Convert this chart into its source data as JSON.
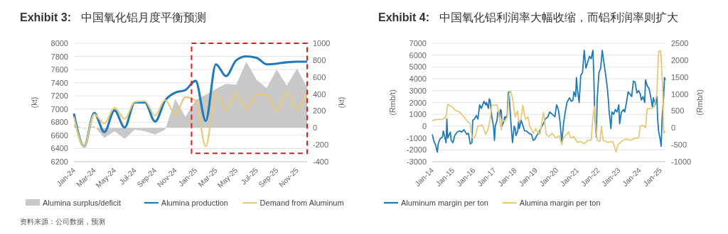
{
  "chart_data": [
    {
      "type": "line",
      "title": "Exhibit 3: 中国氧化铝月度平衡预测",
      "ylabel": "(kt)",
      "y2label": "(kt)",
      "categories": [
        "Jan-24",
        null,
        "Mar-24",
        null,
        "May-24",
        null,
        "Jul-24",
        null,
        "Sep-24",
        null,
        "Nov-24",
        null,
        "Jan-25",
        null,
        "Mar-25",
        null,
        "May-25",
        null,
        "Jul-25",
        null,
        "Sep-25",
        null,
        "Nov-25",
        null
      ],
      "series": [
        {
          "name": "Alumina surplus/deficit",
          "type": "area",
          "axis": "y2",
          "color": "#c8c8c8",
          "values": [
            40,
            -10,
            20,
            -120,
            -40,
            -130,
            -20,
            -40,
            -80,
            -20,
            340,
            130,
            330,
            390,
            460,
            520,
            510,
            780,
            570,
            470,
            690,
            500,
            700,
            480
          ]
        },
        {
          "name": "Alumina production",
          "color": "#1f7ab5",
          "values": [
            6930,
            6430,
            6940,
            6650,
            6980,
            6720,
            7100,
            7100,
            6810,
            7130,
            7250,
            7290,
            7430,
            6820,
            7680,
            7500,
            7740,
            7800,
            7780,
            7680,
            7690,
            7710,
            7720,
            7720
          ]
        },
        {
          "name": "Demand from Aluminum",
          "color": "#e8c97a",
          "values": [
            6880,
            6430,
            6920,
            6780,
            7020,
            6850,
            7110,
            7120,
            6900,
            7140,
            6920,
            7180,
            7130,
            6430,
            7240,
            6990,
            7230,
            7000,
            7220,
            7220,
            6980,
            7240,
            7000,
            7240
          ]
        }
      ],
      "ylim": [
        6200,
        8000
      ],
      "yticks": [
        6200,
        6400,
        6600,
        6800,
        7000,
        7200,
        7400,
        7600,
        7800,
        8000
      ],
      "y2lim": [
        -400,
        1000
      ],
      "y2ticks": [
        -400,
        -200,
        0,
        200,
        400,
        600,
        800,
        1000
      ],
      "grid": "y",
      "legend": "bottom",
      "annotations": [
        "资料来源：公司数据，预测"
      ]
    },
    {
      "type": "line",
      "title": "Exhibit 4: 中国氧化铝利润率大幅收缩，而铝利润率则扩大",
      "ylabel": "(Rmb/t)",
      "y2label": "(Rmb/t)",
      "series": [
        {
          "name": "Aluminum margin per ton",
          "color": "#1f7ab5",
          "x": [
            "2014-01-01",
            "2014-02-01",
            "2014-03-01",
            "2014-04-01",
            "2014-04-15",
            "2014-05-15",
            "2014-07-01",
            "2014-07-15",
            "2014-09-01",
            "2014-09-15",
            "2014-10-01",
            "2014-11-15",
            "2014-12-01",
            "2015-01-01",
            "2015-02-01",
            "2015-03-15",
            "2015-05-01",
            "2015-06-01",
            "2015-07-15",
            "2015-09-01",
            "2015-10-01",
            "2015-11-01",
            "2015-12-01",
            "2015-12-15",
            "2016-01-15",
            "2016-02-15",
            "2016-03-15",
            "2016-04-15",
            "2016-05-15",
            "2016-07-01",
            "2016-08-01",
            "2016-08-15",
            "2016-09-15",
            "2016-10-01",
            "2016-10-15",
            "2016-11-15",
            "2016-12-15",
            "2017-01-01",
            "2017-01-15",
            "2017-02-15",
            "2017-03-01",
            "2017-04-01",
            "2017-04-15",
            "2017-05-01",
            "2017-05-15",
            "2017-06-15",
            "2017-07-01",
            "2017-07-15",
            "2017-08-15",
            "2017-09-01",
            "2017-09-15",
            "2017-10-01",
            "2017-10-15",
            "2017-11-01",
            "2017-11-15",
            "2017-12-15",
            "2018-01-01",
            "2018-01-15",
            "2018-02-15",
            "2018-03-01",
            "2018-03-15",
            "2018-04-15",
            "2018-05-01",
            "2018-06-15",
            "2018-07-15",
            "2018-09-01",
            "2018-10-15",
            "2018-11-15",
            "2018-12-15",
            "2019-01-15",
            "2019-03-01",
            "2019-04-15",
            "2019-05-15",
            "2019-06-15",
            "2019-08-01",
            "2019-09-01",
            "2019-10-15",
            "2019-12-01",
            "2020-01-01",
            "2020-02-01",
            "2020-03-01",
            "2020-04-01",
            "2020-05-01",
            "2020-06-01",
            "2020-07-01",
            "2020-08-15",
            "2020-09-15",
            "2020-10-15",
            "2020-11-01",
            "2020-12-01",
            "2020-12-15",
            "2021-01-01",
            "2021-02-01",
            "2021-03-01",
            "2021-04-01",
            "2021-05-01",
            "2021-06-01",
            "2021-07-01",
            "2021-08-01",
            "2021-09-01",
            "2021-10-01",
            "2021-10-15",
            "2021-11-01",
            "2021-12-01",
            "2021-12-15",
            "2022-01-15",
            "2022-02-15",
            "2022-03-15",
            "2022-04-15",
            "2022-05-15",
            "2022-06-15",
            "2022-07-01",
            "2022-07-15",
            "2022-08-15",
            "2022-09-01",
            "2022-10-01",
            "2022-11-01",
            "2022-12-01",
            "2023-01-01",
            "2023-01-15",
            "2023-02-15",
            "2023-04-01",
            "2023-04-15",
            "2023-05-15",
            "2023-06-15",
            "2023-07-15",
            "2023-08-15",
            "2023-09-15",
            "2023-10-15",
            "2023-11-15",
            "2023-12-15",
            "2024-01-15",
            "2024-02-01",
            "2024-03-01",
            "2024-04-01",
            "2024-04-15",
            "2024-05-15",
            "2024-06-15",
            "2024-07-15",
            "2024-08-15",
            "2024-09-01",
            "2024-10-01",
            "2024-11-01",
            "2024-11-15",
            "2024-12-01",
            "2025-01-01",
            "2025-01-15",
            "2025-02-01",
            "2025-03-01",
            "2025-03-15",
            "2025-04-01"
          ],
          "values": [
            -700,
            -1300,
            -1600,
            -2200,
            -1500,
            -1100,
            -900,
            -400,
            -1400,
            600,
            -1000,
            -500,
            -1200,
            -1400,
            -800,
            -500,
            -400,
            -500,
            -300,
            -700,
            -600,
            -1500,
            -1400,
            500,
            600,
            900,
            600,
            1800,
            1500,
            2100,
            1800,
            2000,
            1500,
            2300,
            2200,
            800,
            0,
            -1200,
            0,
            500,
            1200,
            800,
            1400,
            1300,
            0,
            400,
            800,
            600,
            1000,
            2800,
            2900,
            1500,
            500,
            -600,
            -1400,
            0,
            -200,
            -800,
            -400,
            400,
            -200,
            500,
            300,
            -400,
            -400,
            -600,
            -700,
            -1200,
            -1100,
            -800,
            -500,
            0,
            200,
            600,
            800,
            1200,
            1000,
            800,
            1800,
            1400,
            400,
            -1400,
            200,
            1200,
            2000,
            2400,
            2100,
            2200,
            2900,
            2500,
            4100,
            3100,
            2000,
            4300,
            4500,
            6400,
            4900,
            5400,
            5900,
            5700,
            6400,
            4700,
            1200,
            -900,
            2200,
            4500,
            4900,
            6400,
            5300,
            4300,
            3100,
            2200,
            1200,
            -200,
            1200,
            1000,
            1400,
            1200,
            1800,
            200,
            1200,
            1400,
            1200,
            2000,
            2900,
            2700,
            2500,
            3800,
            3700,
            2800,
            3000,
            2700,
            2200,
            2500,
            2000,
            3900,
            3400,
            3200,
            2500,
            1600,
            2400,
            1800,
            2500,
            600,
            -400,
            -1200,
            -1700,
            600,
            2500,
            4100,
            3900
          ]
        },
        {
          "name": "Alumina margin per ton",
          "color": "#e8c97a",
          "axis": "y2",
          "x": [
            "2014-01-01",
            "2014-04-01",
            "2014-07-01",
            "2014-09-01",
            "2014-10-01",
            "2014-11-15",
            "2014-12-15",
            "2015-02-01",
            "2015-05-01",
            "2015-07-15",
            "2015-09-01",
            "2015-11-01",
            "2015-12-01",
            "2016-01-01",
            "2016-02-01",
            "2016-03-15",
            "2016-06-01",
            "2016-08-01",
            "2016-09-15",
            "2016-10-15",
            "2016-11-15",
            "2017-01-01",
            "2017-02-15",
            "2017-03-15",
            "2017-05-01",
            "2017-05-15",
            "2017-07-01",
            "2017-08-15",
            "2017-09-15",
            "2017-10-15",
            "2017-11-15",
            "2018-01-01",
            "2018-02-15",
            "2018-03-01",
            "2018-04-15",
            "2018-05-15",
            "2018-07-01",
            "2018-08-15",
            "2018-09-15",
            "2018-11-15",
            "2019-01-01",
            "2019-01-15",
            "2019-03-15",
            "2019-05-15",
            "2019-07-01",
            "2019-08-15",
            "2019-10-15",
            "2019-12-15",
            "2020-02-15",
            "2020-04-01",
            "2020-05-01",
            "2020-08-01",
            "2020-09-01",
            "2020-11-01",
            "2021-01-01",
            "2021-03-01",
            "2021-05-01",
            "2021-07-01",
            "2021-09-01",
            "2021-10-01",
            "2021-11-01",
            "2021-11-15",
            "2021-12-15",
            "2022-02-01",
            "2022-03-01",
            "2022-04-01",
            "2022-06-15",
            "2022-09-15",
            "2022-11-15",
            "2022-12-15",
            "2023-03-15",
            "2023-05-15",
            "2023-08-01",
            "2023-10-15",
            "2023-12-15",
            "2024-01-15",
            "2024-02-15",
            "2024-04-15",
            "2024-05-15",
            "2024-08-01",
            "2024-09-15",
            "2024-11-01",
            "2024-12-01",
            "2025-01-01",
            "2025-01-15",
            "2025-02-15",
            "2025-03-01",
            "2025-04-01"
          ],
          "values": [
            220,
            250,
            250,
            320,
            700,
            650,
            630,
            530,
            460,
            320,
            220,
            120,
            -280,
            -300,
            -230,
            50,
            80,
            -190,
            -20,
            250,
            670,
            670,
            680,
            460,
            -60,
            250,
            190,
            320,
            1010,
            1080,
            870,
            320,
            500,
            190,
            250,
            670,
            250,
            320,
            50,
            -160,
            -20,
            -90,
            -190,
            460,
            -190,
            -260,
            -160,
            -300,
            -230,
            -500,
            -300,
            -120,
            -300,
            -260,
            -430,
            -400,
            -470,
            -370,
            -370,
            320,
            630,
            190,
            -370,
            -400,
            50,
            -370,
            -430,
            -400,
            -710,
            -500,
            -370,
            -330,
            -370,
            -300,
            -300,
            50,
            80,
            10,
            570,
            570,
            630,
            1010,
            2250,
            2290,
            2120,
            1010,
            -160,
            -90
          ]
        }
      ],
      "xlim": [
        "2014-01-01",
        "2025-04-01"
      ],
      "xticks": [
        {
          "value": "2014-01",
          "label": "Jan-14"
        },
        {
          "value": "2015-01",
          "label": "Jan-15"
        },
        {
          "value": "2016-01",
          "label": "Jan-16"
        },
        {
          "value": "2017-01",
          "label": "Jan-17"
        },
        {
          "value": "2018-01",
          "label": "Jan-18"
        },
        {
          "value": "2019-01",
          "label": "Jan-19"
        },
        {
          "value": "2020-01",
          "label": "Jan-20"
        },
        {
          "value": "2021-01",
          "label": "Jan-21"
        },
        {
          "value": "2022-01",
          "label": "Jan-22"
        },
        {
          "value": "2023-01",
          "label": "Jan-23"
        },
        {
          "value": "2024-01",
          "label": "Jan-24"
        },
        {
          "value": "2025-01",
          "label": "Jan-25"
        }
      ],
      "ylim": [
        -3000,
        7000
      ],
      "yticks": [
        -3000,
        -2000,
        -1000,
        0,
        1000,
        2000,
        3000,
        4000,
        5000,
        6000,
        7000
      ],
      "y2lim": [
        -1000,
        2500
      ],
      "y2ticks": [
        -1000,
        -500,
        0,
        500,
        1000,
        1500,
        2000,
        2500
      ],
      "grid": "y",
      "legend": "bottom"
    }
  ]
}
